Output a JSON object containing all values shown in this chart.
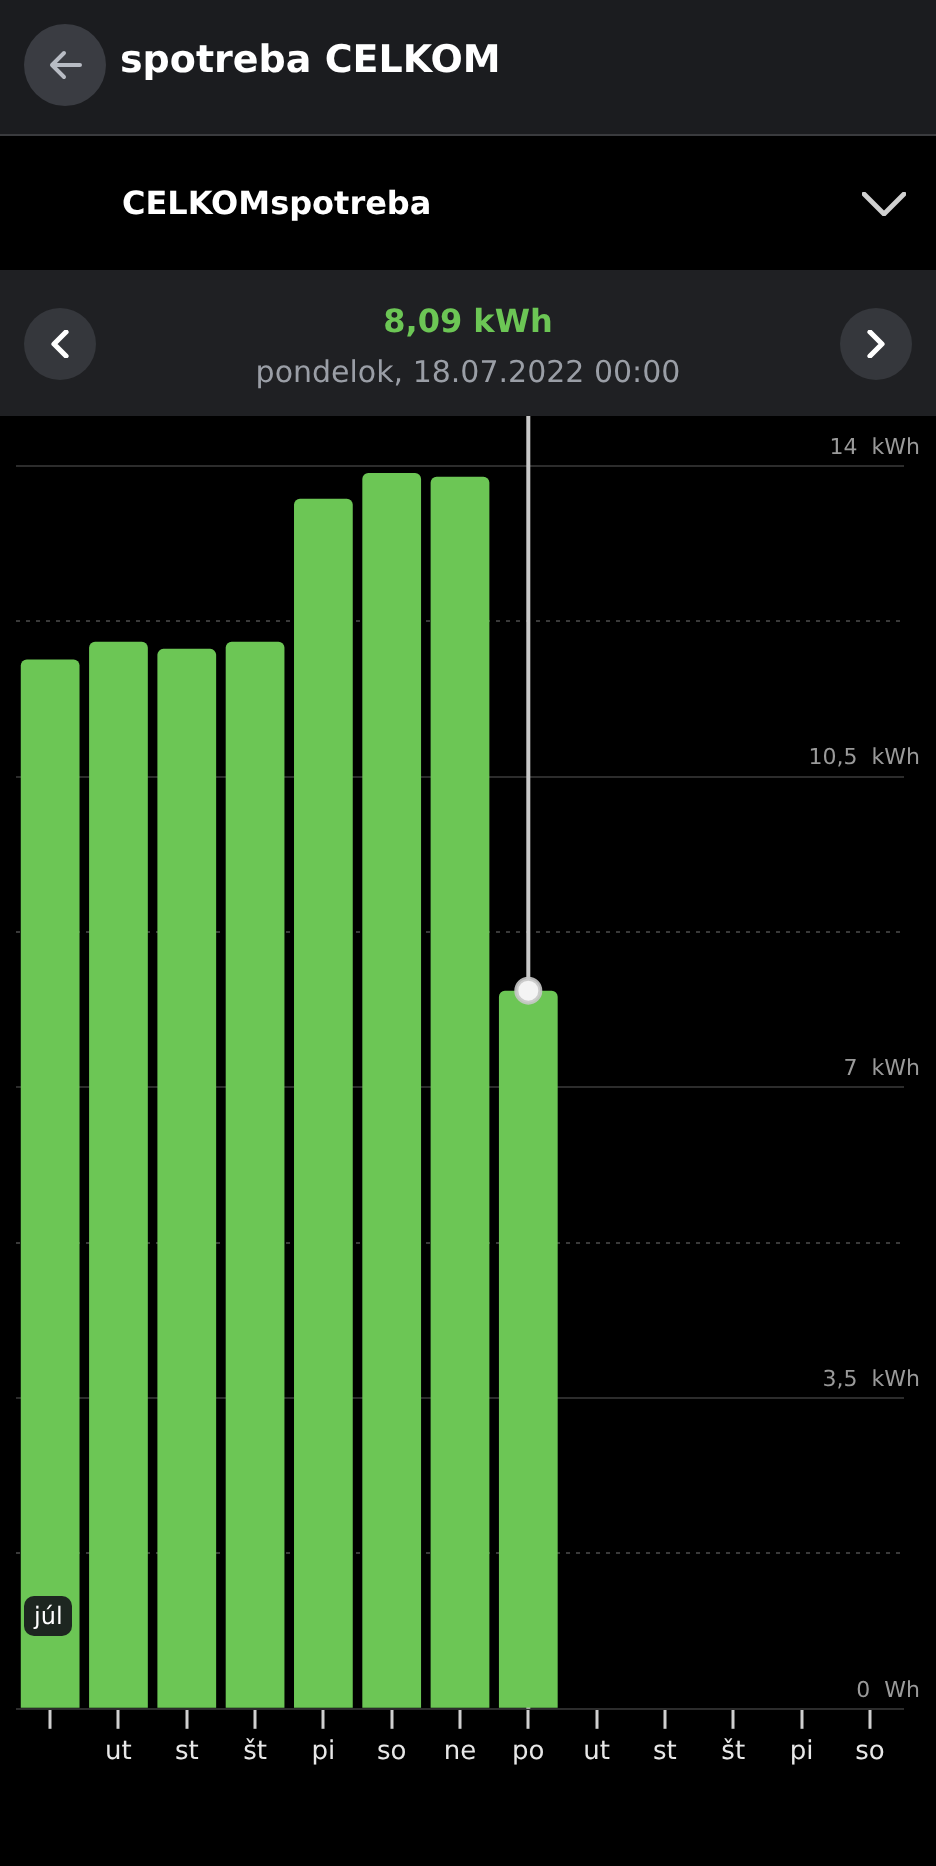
{
  "chart_data": {
    "type": "bar",
    "title": "spotreba CELKOM",
    "subtitle": "CELKOMspotreba",
    "annotations": [
      "8,09 kWh",
      "pondelok, 18.07.2022 00:00",
      "júl"
    ],
    "categories": [
      null,
      "ut",
      "st",
      "št",
      "pi",
      "so",
      "ne",
      "po",
      "ut",
      "st",
      "št",
      "pi",
      "so"
    ],
    "series": [
      {
        "color": "#6cc655",
        "values": [
          11.82,
          12.02,
          11.94,
          12.02,
          13.63,
          13.92,
          13.88,
          8.09,
          null,
          null,
          null,
          null,
          null
        ]
      },
      {
        "type": "scatter",
        "color": "#f4f4f4",
        "marker": "circle",
        "x": [
          "po"
        ],
        "values": [
          8.09
        ]
      }
    ],
    "ylim": [
      0,
      14
    ],
    "yticks": [
      {
        "value": 0,
        "label": "0  Wh"
      },
      {
        "value": 1.75,
        "label": null
      },
      {
        "value": 3.5,
        "label": "3,5  kWh"
      },
      {
        "value": 5.25,
        "label": null
      },
      {
        "value": 7,
        "label": "7  kWh"
      },
      {
        "value": 8.75,
        "label": null
      },
      {
        "value": 10.5,
        "label": "10,5  kWh"
      },
      {
        "value": 12.25,
        "label": null
      },
      {
        "value": 14,
        "label": "14  kWh"
      }
    ],
    "ref_lines": [
      {
        "axis": "x",
        "value": "po",
        "color": "#c8c8c8"
      }
    ],
    "grid": "y",
    "legend": false
  }
}
